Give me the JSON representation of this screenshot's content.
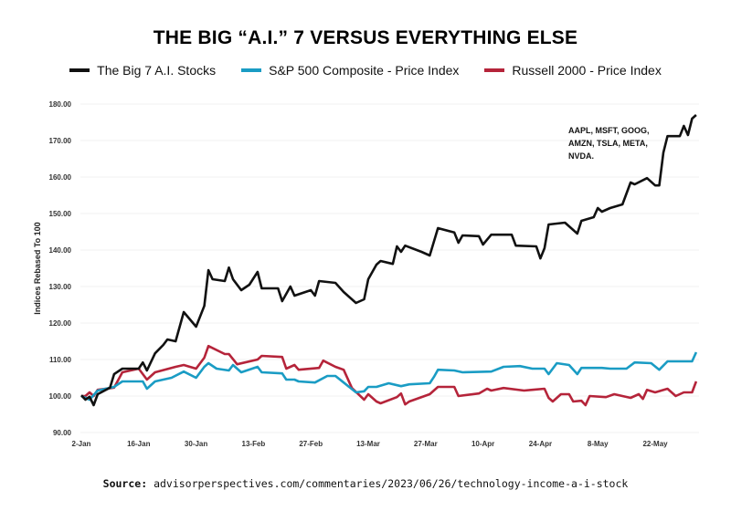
{
  "chart_data": {
    "type": "line",
    "title": "THE BIG “A.I.” 7 VERSUS EVERYTHING ELSE",
    "ylabel": "Indices Rebased To 100",
    "xlabel": "",
    "ylim": [
      90,
      180
    ],
    "yticks": [
      "90.00",
      "100.00",
      "110.00",
      "120.00",
      "130.00",
      "140.00",
      "150.00",
      "160.00",
      "170.00",
      "180.00"
    ],
    "xticks": [
      {
        "label": "2-Jan",
        "date": "2023-01-02"
      },
      {
        "label": "16-Jan",
        "date": "2023-01-16"
      },
      {
        "label": "30-Jan",
        "date": "2023-01-30"
      },
      {
        "label": "13-Feb",
        "date": "2023-02-13"
      },
      {
        "label": "27-Feb",
        "date": "2023-02-27"
      },
      {
        "label": "13-Mar",
        "date": "2023-03-13"
      },
      {
        "label": "27-Mar",
        "date": "2023-03-27"
      },
      {
        "label": "10-Apr",
        "date": "2023-04-10"
      },
      {
        "label": "24-Apr",
        "date": "2023-04-24"
      },
      {
        "label": "8-May",
        "date": "2023-05-08"
      },
      {
        "label": "22-May",
        "date": "2023-05-22"
      }
    ],
    "grid": true,
    "legend": "top",
    "annotation": [
      "AAPL, MSFT, GOOG,",
      "AMZN, TSLA, META,",
      "NVDA."
    ],
    "series": [
      {
        "name": "The Big 7 A.I. Stocks",
        "color": "#111111",
        "points": [
          [
            "2023-01-02",
            100.2
          ],
          [
            "2023-01-03",
            99
          ],
          [
            "2023-01-04",
            99.8
          ],
          [
            "2023-01-05",
            97.5
          ],
          [
            "2023-01-06",
            100.5
          ],
          [
            "2023-01-09",
            102.3
          ],
          [
            "2023-01-10",
            106
          ],
          [
            "2023-01-12",
            107.5
          ],
          [
            "2023-01-16",
            107.5
          ],
          [
            "2023-01-17",
            109.2
          ],
          [
            "2023-01-18",
            107
          ],
          [
            "2023-01-20",
            111.7
          ],
          [
            "2023-01-22",
            114
          ],
          [
            "2023-01-23",
            115.5
          ],
          [
            "2023-01-25",
            115
          ],
          [
            "2023-01-27",
            123
          ],
          [
            "2023-01-30",
            119
          ],
          [
            "2023-02-01",
            124.7
          ],
          [
            "2023-02-02",
            134.5
          ],
          [
            "2023-02-03",
            132
          ],
          [
            "2023-02-06",
            131.5
          ],
          [
            "2023-02-07",
            135.2
          ],
          [
            "2023-02-08",
            132
          ],
          [
            "2023-02-10",
            129
          ],
          [
            "2023-02-12",
            130.5
          ],
          [
            "2023-02-14",
            134
          ],
          [
            "2023-02-15",
            129.5
          ],
          [
            "2023-02-19",
            129.5
          ],
          [
            "2023-02-20",
            126
          ],
          [
            "2023-02-22",
            130
          ],
          [
            "2023-02-23",
            127.5
          ],
          [
            "2023-02-27",
            129
          ],
          [
            "2023-02-28",
            127.5
          ],
          [
            "2023-03-01",
            131.5
          ],
          [
            "2023-03-05",
            131
          ],
          [
            "2023-03-07",
            128.5
          ],
          [
            "2023-03-10",
            125.5
          ],
          [
            "2023-03-12",
            126.5
          ],
          [
            "2023-03-13",
            132
          ],
          [
            "2023-03-15",
            136
          ],
          [
            "2023-03-16",
            137
          ],
          [
            "2023-03-19",
            136.2
          ],
          [
            "2023-03-20",
            141
          ],
          [
            "2023-03-21",
            139.5
          ],
          [
            "2023-03-22",
            141.2
          ],
          [
            "2023-03-26",
            139.5
          ],
          [
            "2023-03-28",
            138.5
          ],
          [
            "2023-03-30",
            146
          ],
          [
            "2023-04-03",
            144.8
          ],
          [
            "2023-04-04",
            142
          ],
          [
            "2023-04-05",
            144
          ],
          [
            "2023-04-09",
            143.8
          ],
          [
            "2023-04-10",
            141.5
          ],
          [
            "2023-04-12",
            144.2
          ],
          [
            "2023-04-17",
            144.2
          ],
          [
            "2023-04-18",
            141.2
          ],
          [
            "2023-04-23",
            141
          ],
          [
            "2023-04-24",
            137.7
          ],
          [
            "2023-04-25",
            140.5
          ],
          [
            "2023-04-26",
            147
          ],
          [
            "2023-04-30",
            147.5
          ],
          [
            "2023-05-03",
            144.5
          ],
          [
            "2023-05-04",
            148
          ],
          [
            "2023-05-07",
            149
          ],
          [
            "2023-05-08",
            151.5
          ],
          [
            "2023-05-09",
            150.5
          ],
          [
            "2023-05-11",
            151.5
          ],
          [
            "2023-05-14",
            152.5
          ],
          [
            "2023-05-16",
            158.5
          ],
          [
            "2023-05-17",
            158
          ],
          [
            "2023-05-20",
            159.7
          ],
          [
            "2023-05-22",
            157.7
          ],
          [
            "2023-05-23",
            157.7
          ],
          [
            "2023-05-24",
            166.7
          ],
          [
            "2023-05-25",
            171.2
          ],
          [
            "2023-05-28",
            171.2
          ],
          [
            "2023-05-29",
            174
          ],
          [
            "2023-05-30",
            171.5
          ],
          [
            "2023-05-31",
            176
          ],
          [
            "2023-06-01",
            177
          ]
        ]
      },
      {
        "name": "S&P 500 Composite - Price Index",
        "color": "#1a9cc4",
        "points": [
          [
            "2023-01-02",
            100
          ],
          [
            "2023-01-04",
            99
          ],
          [
            "2023-01-06",
            101.5
          ],
          [
            "2023-01-10",
            102.5
          ],
          [
            "2023-01-12",
            104
          ],
          [
            "2023-01-17",
            104
          ],
          [
            "2023-01-18",
            102
          ],
          [
            "2023-01-20",
            104
          ],
          [
            "2023-01-24",
            105
          ],
          [
            "2023-01-27",
            106.7
          ],
          [
            "2023-01-30",
            105
          ],
          [
            "2023-02-01",
            108
          ],
          [
            "2023-02-02",
            109
          ],
          [
            "2023-02-04",
            107.5
          ],
          [
            "2023-02-07",
            107
          ],
          [
            "2023-02-08",
            108.5
          ],
          [
            "2023-02-10",
            106.5
          ],
          [
            "2023-02-14",
            108
          ],
          [
            "2023-02-15",
            106.5
          ],
          [
            "2023-02-20",
            106.2
          ],
          [
            "2023-02-21",
            104.5
          ],
          [
            "2023-02-23",
            104.5
          ],
          [
            "2023-02-24",
            104
          ],
          [
            "2023-02-28",
            103.7
          ],
          [
            "2023-03-03",
            105.5
          ],
          [
            "2023-03-05",
            105.5
          ],
          [
            "2023-03-07",
            103.7
          ],
          [
            "2023-03-10",
            101
          ],
          [
            "2023-03-12",
            101.3
          ],
          [
            "2023-03-13",
            102.5
          ],
          [
            "2023-03-15",
            102.5
          ],
          [
            "2023-03-18",
            103.5
          ],
          [
            "2023-03-21",
            102.7
          ],
          [
            "2023-03-23",
            103.2
          ],
          [
            "2023-03-28",
            103.5
          ],
          [
            "2023-03-29",
            105.2
          ],
          [
            "2023-03-30",
            107.2
          ],
          [
            "2023-04-03",
            107
          ],
          [
            "2023-04-05",
            106.5
          ],
          [
            "2023-04-12",
            106.7
          ],
          [
            "2023-04-15",
            108
          ],
          [
            "2023-04-19",
            108.2
          ],
          [
            "2023-04-22",
            107.5
          ],
          [
            "2023-04-25",
            107.5
          ],
          [
            "2023-04-26",
            106
          ],
          [
            "2023-04-28",
            109
          ],
          [
            "2023-05-01",
            108.5
          ],
          [
            "2023-05-03",
            106
          ],
          [
            "2023-05-04",
            107.7
          ],
          [
            "2023-05-09",
            107.7
          ],
          [
            "2023-05-11",
            107.5
          ],
          [
            "2023-05-15",
            107.5
          ],
          [
            "2023-05-17",
            109.2
          ],
          [
            "2023-05-21",
            109
          ],
          [
            "2023-05-23",
            107.2
          ],
          [
            "2023-05-25",
            109.5
          ],
          [
            "2023-05-30",
            109.5
          ],
          [
            "2023-05-31",
            109.5
          ],
          [
            "2023-06-01",
            112
          ]
        ]
      },
      {
        "name": "Russell 2000 - Price Index",
        "color": "#b5243a",
        "points": [
          [
            "2023-01-02",
            100
          ],
          [
            "2023-01-03",
            100
          ],
          [
            "2023-01-04",
            101
          ],
          [
            "2023-01-05",
            100
          ],
          [
            "2023-01-06",
            101.7
          ],
          [
            "2023-01-10",
            102.3
          ],
          [
            "2023-01-12",
            106.5
          ],
          [
            "2023-01-16",
            107.5
          ],
          [
            "2023-01-18",
            104.5
          ],
          [
            "2023-01-20",
            106.5
          ],
          [
            "2023-01-25",
            108
          ],
          [
            "2023-01-27",
            108.5
          ],
          [
            "2023-01-30",
            107.5
          ],
          [
            "2023-02-01",
            110.5
          ],
          [
            "2023-02-02",
            113.7
          ],
          [
            "2023-02-06",
            111.5
          ],
          [
            "2023-02-07",
            111.5
          ],
          [
            "2023-02-09",
            108.7
          ],
          [
            "2023-02-14",
            110
          ],
          [
            "2023-02-15",
            111
          ],
          [
            "2023-02-20",
            110.7
          ],
          [
            "2023-02-21",
            107.5
          ],
          [
            "2023-02-23",
            108.5
          ],
          [
            "2023-02-24",
            107.2
          ],
          [
            "2023-03-01",
            107.7
          ],
          [
            "2023-03-02",
            109.7
          ],
          [
            "2023-03-05",
            108
          ],
          [
            "2023-03-07",
            107.2
          ],
          [
            "2023-03-09",
            102.2
          ],
          [
            "2023-03-12",
            99
          ],
          [
            "2023-03-13",
            100.5
          ],
          [
            "2023-03-15",
            98.5
          ],
          [
            "2023-03-16",
            98
          ],
          [
            "2023-03-20",
            99.7
          ],
          [
            "2023-03-21",
            100.7
          ],
          [
            "2023-03-22",
            97.7
          ],
          [
            "2023-03-23",
            98.5
          ],
          [
            "2023-03-28",
            100.5
          ],
          [
            "2023-03-30",
            102.5
          ],
          [
            "2023-04-03",
            102.5
          ],
          [
            "2023-04-04",
            100
          ],
          [
            "2023-04-09",
            100.7
          ],
          [
            "2023-04-11",
            102
          ],
          [
            "2023-04-12",
            101.5
          ],
          [
            "2023-04-15",
            102.2
          ],
          [
            "2023-04-20",
            101.5
          ],
          [
            "2023-04-22",
            101.7
          ],
          [
            "2023-04-25",
            102
          ],
          [
            "2023-04-26",
            99.5
          ],
          [
            "2023-04-27",
            98.5
          ],
          [
            "2023-04-29",
            100.5
          ],
          [
            "2023-05-01",
            100.5
          ],
          [
            "2023-05-02",
            98.5
          ],
          [
            "2023-05-04",
            98.7
          ],
          [
            "2023-05-05",
            97.5
          ],
          [
            "2023-05-06",
            100
          ],
          [
            "2023-05-10",
            99.7
          ],
          [
            "2023-05-12",
            100.5
          ],
          [
            "2023-05-16",
            99.5
          ],
          [
            "2023-05-18",
            100.5
          ],
          [
            "2023-05-19",
            99.2
          ],
          [
            "2023-05-20",
            101.7
          ],
          [
            "2023-05-22",
            101
          ],
          [
            "2023-05-25",
            102
          ],
          [
            "2023-05-27",
            100
          ],
          [
            "2023-05-29",
            101
          ],
          [
            "2023-05-31",
            101
          ],
          [
            "2023-06-01",
            104
          ]
        ]
      }
    ]
  },
  "source": {
    "label": "Source:",
    "text": "advisorperspectives.com/commentaries/2023/06/26/technology-income-a-i-stock"
  }
}
